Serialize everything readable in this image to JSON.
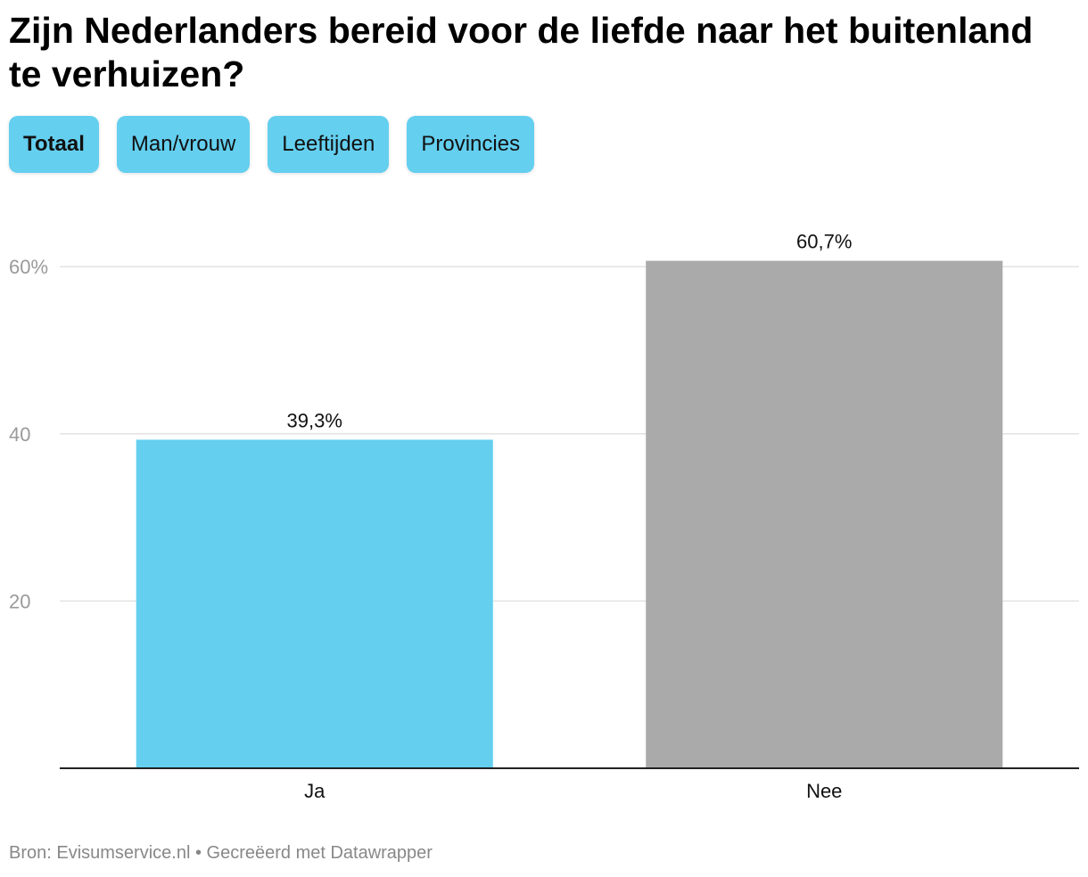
{
  "title": "Zijn Nederlanders bereid voor de liefde naar het buitenland te verhuizen?",
  "tabs": [
    {
      "label": "Totaal",
      "active": true
    },
    {
      "label": "Man/vrouw",
      "active": false
    },
    {
      "label": "Leeftijden",
      "active": false
    },
    {
      "label": "Provincies",
      "active": false
    }
  ],
  "colors": {
    "tab_bg": "#64cfef",
    "bar_ja": "#64cfef",
    "bar_nee": "#aaaaaa",
    "gridline": "#e3e3e3",
    "tick_text": "#9a9a9a",
    "axis": "#222222"
  },
  "chart_data": {
    "type": "bar",
    "categories": [
      "Ja",
      "Nee"
    ],
    "values": [
      39.3,
      60.7
    ],
    "value_labels": [
      "39,3%",
      "60,7%"
    ],
    "ylim": [
      0,
      60
    ],
    "yticks": [
      20,
      40,
      60
    ],
    "ytick_labels": [
      "20",
      "40",
      "60%"
    ],
    "grid": true,
    "xlabel": "",
    "ylabel": ""
  },
  "footer": {
    "text": "Bron: Evisumservice.nl • Gecreëerd met Datawrapper"
  }
}
